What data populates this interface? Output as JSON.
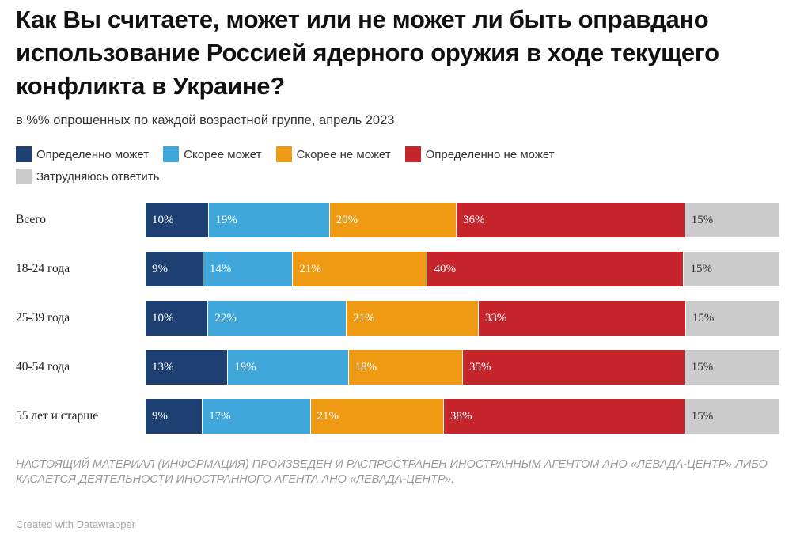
{
  "title": "Как Вы считаете, может или не может ли быть оправдано использование Россией ядерного оружия в ходе текущего конфликта в Украине?",
  "subtitle": "в %% опрошенных по каждой возрастной группе, апрель 2023",
  "disclaimer": "НАСТОЯЩИЙ МАТЕРИАЛ (ИНФОРМАЦИЯ) ПРОИЗВЕДЕН И РАСПРОСТРАНЕН ИНОСТРАННЫМ АГЕНТОМ АНО «ЛЕВАДА-ЦЕНТР» ЛИБО КАСАЕТСЯ ДЕЯТЕЛЬНОСТИ ИНОСТРАННОГО АГЕНТА АНО «ЛЕВАДА-ЦЕНТР».",
  "credit": "Created with Datawrapper",
  "chart_data": {
    "type": "bar",
    "orientation": "horizontal",
    "stacked": true,
    "title": "Как Вы считаете, может или не может ли быть оправдано использование Россией ядерного оружия в ходе текущего конфликта в Украине?",
    "subtitle": "в %% опрошенных по каждой возрастной группе, апрель 2023",
    "categories": [
      "Всего",
      "18-24 года",
      "25-39 года",
      "40-54 года",
      "55 лет и старше"
    ],
    "unit": "%",
    "legend_placement": "top",
    "series": [
      {
        "name": "Определенно может",
        "color": "#1d3f72",
        "values": [
          10,
          9,
          10,
          13,
          9
        ],
        "labels": [
          "10%",
          "9%",
          "10%",
          "13%",
          "9%"
        ]
      },
      {
        "name": "Скорее может",
        "color": "#3fa7d9",
        "values": [
          19,
          14,
          22,
          19,
          17
        ],
        "labels": [
          "19%",
          "14%",
          "22%",
          "19%",
          "17%"
        ]
      },
      {
        "name": "Скорее не может",
        "color": "#ee9a12",
        "values": [
          20,
          21,
          21,
          18,
          21
        ],
        "labels": [
          "20%",
          "21%",
          "21%",
          "18%",
          "21%"
        ]
      },
      {
        "name": "Определенно не может",
        "color": "#c5252b",
        "values": [
          36,
          40,
          33,
          35,
          38
        ],
        "labels": [
          "36%",
          "40%",
          "33%",
          "35%",
          "38%"
        ]
      },
      {
        "name": "Затрудняюсь ответить",
        "color": "#cccccc",
        "values": [
          15,
          15,
          15,
          15,
          15
        ],
        "labels": [
          "15%",
          "15%",
          "15%",
          "15%",
          "15%"
        ]
      }
    ]
  }
}
